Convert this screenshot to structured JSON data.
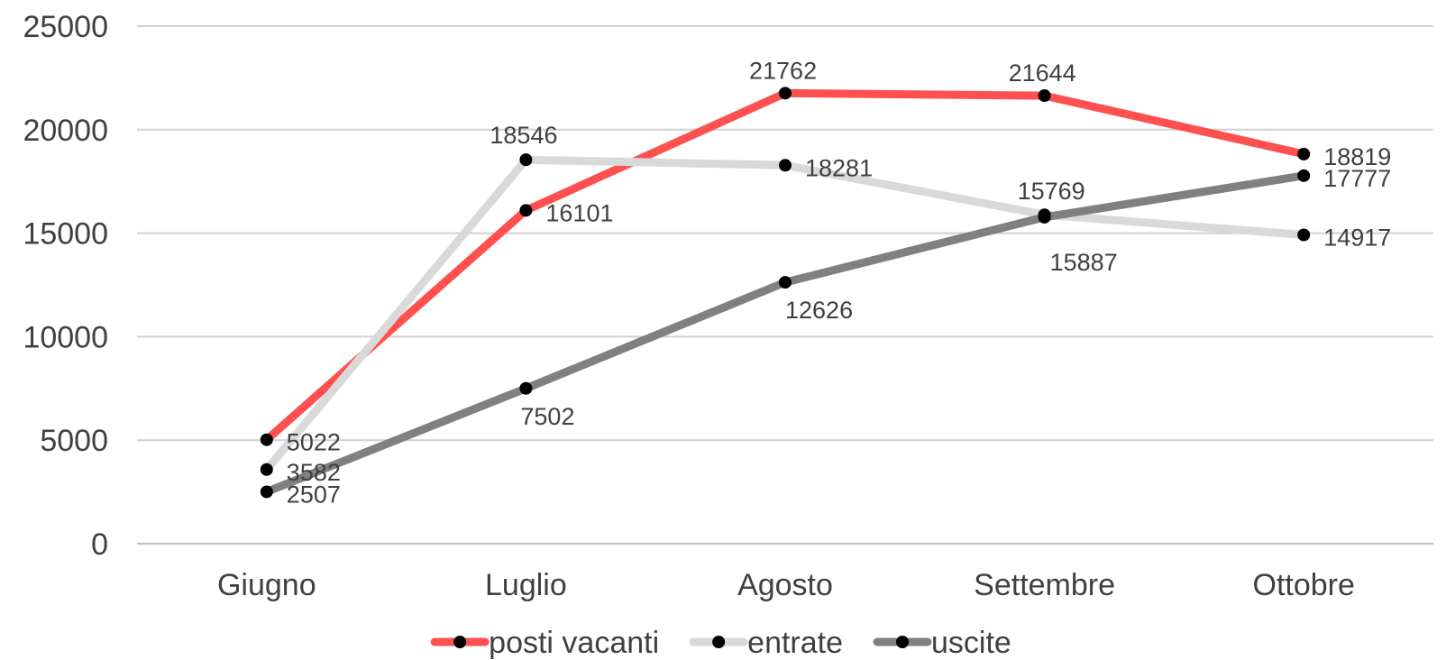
{
  "chart_data": {
    "type": "line",
    "categories": [
      "Giugno",
      "Luglio",
      "Agosto",
      "Settembre",
      "Ottobre"
    ],
    "ylim": [
      0,
      25000
    ],
    "yticks": [
      0,
      5000,
      10000,
      15000,
      20000,
      25000
    ],
    "grid": true,
    "legend_position": "bottom",
    "series": [
      {
        "name": "posti vacanti",
        "color": "#FF5050",
        "values": [
          5022,
          16101,
          21762,
          21644,
          18819
        ]
      },
      {
        "name": "entrate",
        "color": "#D9D9D9",
        "values": [
          3582,
          18546,
          18281,
          15887,
          14917
        ]
      },
      {
        "name": "uscite",
        "color": "#808080",
        "values": [
          2507,
          7502,
          12626,
          15769,
          17777
        ]
      }
    ]
  }
}
